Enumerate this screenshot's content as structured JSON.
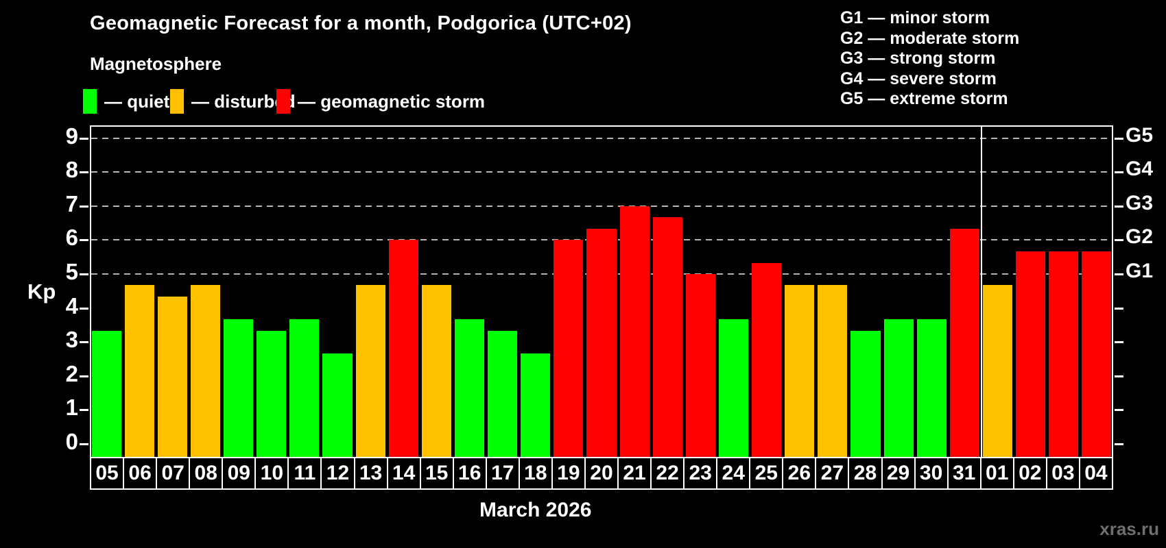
{
  "header": {
    "title": "Geomagnetic Forecast for a month, Podgorica (UTC+02)",
    "subtitle": "Magnetosphere"
  },
  "legend": {
    "items": [
      {
        "name": "quiet",
        "label": "— quiet",
        "color": "#00ff00"
      },
      {
        "name": "disturbed",
        "label": "— disturbed",
        "color": "#ffc000"
      },
      {
        "name": "storm",
        "label": "— geomagnetic storm",
        "color": "#ff0000"
      }
    ]
  },
  "g_scale_legend": {
    "items": [
      {
        "label": "G1 — minor storm"
      },
      {
        "label": "G2 — moderate storm"
      },
      {
        "label": "G3 — strong storm"
      },
      {
        "label": "G4 — severe storm"
      },
      {
        "label": "G5 — extreme storm"
      }
    ]
  },
  "chart_data": {
    "type": "bar",
    "title": "Geomagnetic Forecast for a month, Podgorica (UTC+02)",
    "ylabel": "Kp",
    "xlabel": "March 2026",
    "ylim": [
      0,
      9.4
    ],
    "yticks": [
      0,
      1,
      2,
      3,
      4,
      5,
      6,
      7,
      8,
      9
    ],
    "gridline_values": [
      5,
      6,
      7,
      8,
      9
    ],
    "grid": "dashed horizontal lines at storm levels only",
    "legend_position": "top",
    "right_axis": [
      {
        "value": 5,
        "label": "G1"
      },
      {
        "value": 6,
        "label": "G2"
      },
      {
        "value": 7,
        "label": "G3"
      },
      {
        "value": 8,
        "label": "G4"
      },
      {
        "value": 9,
        "label": "G5"
      }
    ],
    "categories": [
      "05",
      "06",
      "07",
      "08",
      "09",
      "10",
      "11",
      "12",
      "13",
      "14",
      "15",
      "16",
      "17",
      "18",
      "19",
      "20",
      "21",
      "22",
      "23",
      "24",
      "25",
      "26",
      "27",
      "28",
      "29",
      "30",
      "31",
      "01",
      "02",
      "03",
      "04"
    ],
    "values": [
      3.33,
      4.67,
      4.33,
      4.67,
      3.67,
      3.33,
      3.67,
      2.67,
      4.67,
      6.0,
      4.67,
      3.67,
      3.33,
      2.67,
      6.0,
      6.33,
      7.0,
      6.67,
      5.0,
      3.67,
      5.33,
      4.67,
      4.67,
      3.33,
      3.67,
      3.67,
      6.33,
      4.67,
      5.67,
      5.67,
      5.67
    ],
    "statuses": [
      "quiet",
      "disturbed",
      "disturbed",
      "disturbed",
      "quiet",
      "quiet",
      "quiet",
      "quiet",
      "disturbed",
      "storm",
      "disturbed",
      "quiet",
      "quiet",
      "quiet",
      "storm",
      "storm",
      "storm",
      "storm",
      "storm",
      "quiet",
      "storm",
      "disturbed",
      "disturbed",
      "quiet",
      "quiet",
      "quiet",
      "storm",
      "disturbed",
      "storm",
      "storm",
      "storm"
    ],
    "status_colors": {
      "quiet": "#00ff00",
      "disturbed": "#ffc000",
      "storm": "#ff0000"
    },
    "month_separator_index": 27
  },
  "watermark": "xras.ru"
}
